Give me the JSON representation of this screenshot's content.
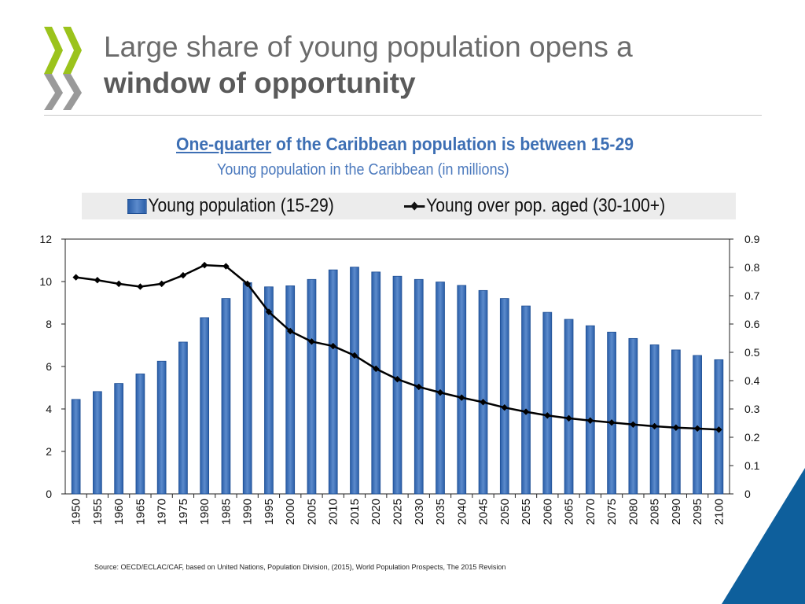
{
  "header": {
    "title_line1": "Large share of young population opens a",
    "title_line2": "window of opportunity"
  },
  "colors": {
    "accent_green": "#9bc31c",
    "accent_gray": "#9a9a9a",
    "bar_blue": "#3d6fb4",
    "corner_blue": "#0e5f9c"
  },
  "chart_data": {
    "type": "bar",
    "title_underlined": "One-quarter",
    "title_rest": " of the Caribbean population is between 15-29",
    "subtitle": "Young population in the Caribbean (in millions)",
    "categories": [
      "1950",
      "1955",
      "1960",
      "1965",
      "1970",
      "1975",
      "1980",
      "1985",
      "1990",
      "1995",
      "2000",
      "2005",
      "2010",
      "2015",
      "2020",
      "2025",
      "2030",
      "2035",
      "2040",
      "2045",
      "2050",
      "2055",
      "2060",
      "2065",
      "2070",
      "2075",
      "2080",
      "2085",
      "2090",
      "2095",
      "2100"
    ],
    "series": [
      {
        "name": "Young population (15-29)",
        "type": "bar",
        "axis": "left",
        "values": [
          4.45,
          4.82,
          5.2,
          5.65,
          6.25,
          7.15,
          8.3,
          9.2,
          9.95,
          9.75,
          9.8,
          10.1,
          10.55,
          10.68,
          10.45,
          10.25,
          10.1,
          9.98,
          9.82,
          9.58,
          9.2,
          8.85,
          8.55,
          8.22,
          7.92,
          7.62,
          7.32,
          7.02,
          6.78,
          6.52,
          6.32
        ]
      },
      {
        "name": "Young over pop. aged (30-100+)",
        "type": "line",
        "axis": "right",
        "values": [
          0.765,
          0.755,
          0.742,
          0.732,
          0.742,
          0.772,
          0.808,
          0.804,
          0.742,
          0.643,
          0.575,
          0.538,
          0.522,
          0.489,
          0.442,
          0.405,
          0.378,
          0.358,
          0.34,
          0.324,
          0.305,
          0.29,
          0.277,
          0.267,
          0.259,
          0.252,
          0.245,
          0.239,
          0.234,
          0.231,
          0.227
        ]
      }
    ],
    "y_left": {
      "ylim": [
        0,
        12
      ],
      "ticks": [
        0,
        2,
        4,
        6,
        8,
        10,
        12
      ],
      "tick_labels": [
        "0",
        "2",
        "4",
        "6",
        "8",
        "10",
        "12"
      ]
    },
    "y_right": {
      "ylim": [
        0,
        0.9
      ],
      "ticks": [
        0,
        0.1,
        0.2,
        0.3,
        0.4,
        0.5,
        0.6,
        0.7,
        0.8,
        0.9
      ],
      "tick_labels": [
        "0",
        "0.1",
        "0.2",
        "0.3",
        "0.4",
        "0.5",
        "0.6",
        "0.7",
        "0.8",
        "0.9"
      ]
    },
    "legend_position": "top",
    "grid": false
  },
  "footer": {
    "source": "Source: OECD/ECLAC/CAF, based on United Nations, Population Division, (2015), World Population Prospects, The 2015 Revision"
  }
}
